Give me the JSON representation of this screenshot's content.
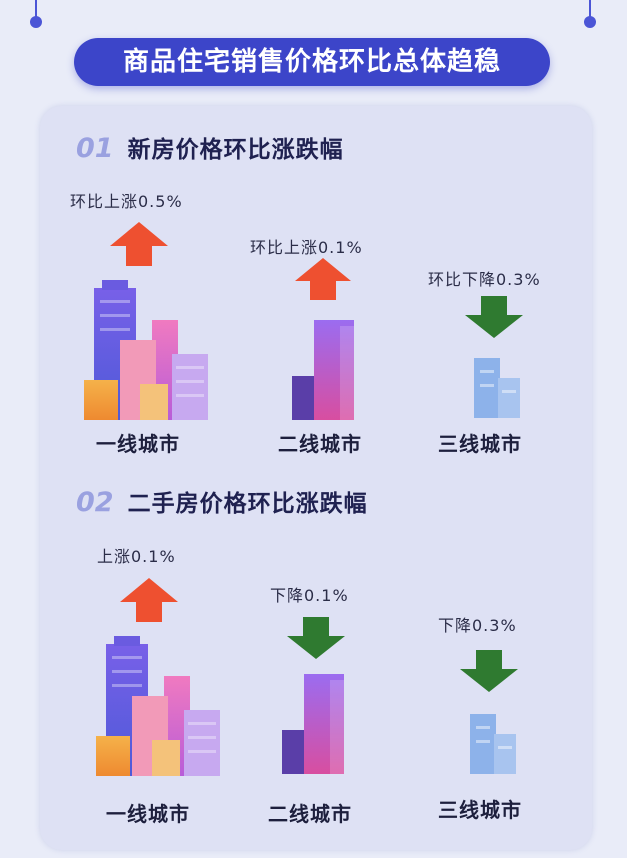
{
  "banner": {
    "title": "商品住宅销售价格环比总体趋稳"
  },
  "sections": [
    {
      "number": "01",
      "title": "新房价格环比涨跌幅",
      "items": [
        {
          "city": "一线城市",
          "change_label": "环比上涨0.5%",
          "direction": "up",
          "value": 0.5
        },
        {
          "city": "二线城市",
          "change_label": "环比上涨0.1%",
          "direction": "up",
          "value": 0.1
        },
        {
          "city": "三线城市",
          "change_label": "环比下降0.3%",
          "direction": "down",
          "value": -0.3
        }
      ]
    },
    {
      "number": "02",
      "title": "二手房价格环比涨跌幅",
      "items": [
        {
          "city": "一线城市",
          "change_label": "上涨0.1%",
          "direction": "up",
          "value": 0.1
        },
        {
          "city": "二线城市",
          "change_label": "下降0.1%",
          "direction": "down",
          "value": -0.1
        },
        {
          "city": "三线城市",
          "change_label": "下降0.3%",
          "direction": "down",
          "value": -0.3
        }
      ]
    }
  ],
  "colors": {
    "up": "#ee5030",
    "down": "#2f7a30",
    "banner": "#3c45c9",
    "accent_num": "#9aa1e0"
  },
  "icons": {
    "up": "arrow-up-icon",
    "down": "arrow-down-icon",
    "tier1": "city-skyline-icon",
    "tier2": "tower-icon",
    "tier3": "small-building-icon"
  }
}
